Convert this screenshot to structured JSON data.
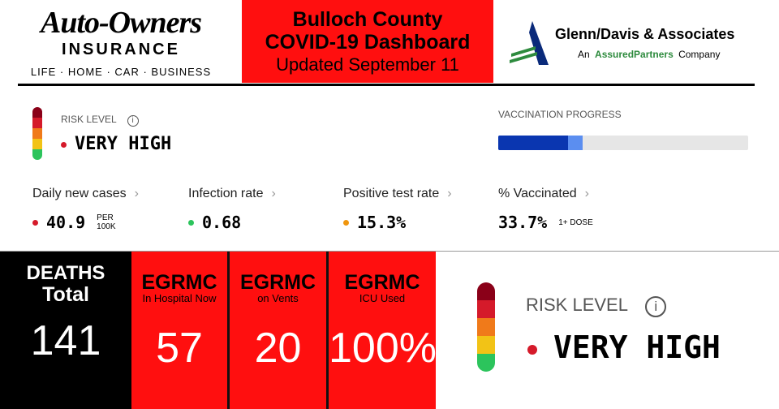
{
  "header": {
    "left_logo": {
      "brand": "Auto-Owners",
      "sub": "INSURANCE",
      "tagline": "LIFE · HOME · CAR · BUSINESS"
    },
    "title": [
      "Bulloch County",
      "COVID-19 Dashboard"
    ],
    "updated": "Updated September 11",
    "right_logo": {
      "name": "Glenn/Davis & Associates",
      "sub": [
        "An",
        "AssuredPartners",
        "Company"
      ]
    }
  },
  "risk": {
    "label": "RISK LEVEL",
    "level": "VERY HIGH"
  },
  "vaccination": {
    "label": "VACCINATION PROGRESS",
    "values": [
      28,
      33.7
    ],
    "max": 100
  },
  "metrics": [
    {
      "label": "Daily new cases",
      "value": "40.9",
      "unit": [
        "PER",
        "100K"
      ]
    },
    {
      "label": "Infection rate",
      "value": "0.68"
    },
    {
      "label": "Positive test rate",
      "value": "15.3%"
    },
    {
      "label": "% Vaccinated",
      "value": "33.7%",
      "unit": [
        "1+ DOSE"
      ]
    }
  ],
  "deaths": {
    "title": [
      "DEATHS",
      "Total"
    ],
    "value": "141"
  },
  "egrmc": [
    {
      "title": "EGRMC",
      "sub": "In Hospital Now",
      "value": "57"
    },
    {
      "title": "EGRMC",
      "sub": "on Vents",
      "value": "20"
    },
    {
      "title": "EGRMC",
      "sub": "ICU Used",
      "value": "100%"
    }
  ],
  "risk_large": {
    "label": "RISK LEVEL",
    "level": "VERY HIGH"
  }
}
